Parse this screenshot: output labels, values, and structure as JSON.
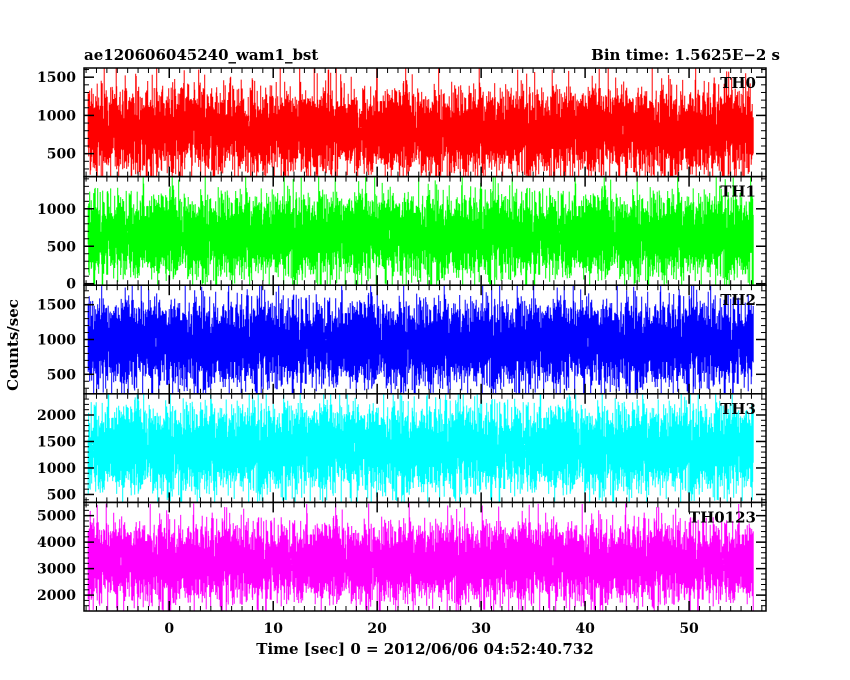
{
  "chart_data": {
    "type": "line",
    "title_left": "ae120606045240_wam1_bst",
    "title_right": "Bin time: 1.5625E−2 s",
    "xlabel": "Time [sec] 0 = 2012/06/06 04:52:40.732",
    "ylabel": "Counts/sec",
    "xlim": [
      -8.2,
      57.4
    ],
    "x_range": [
      -7.8,
      56.2
    ],
    "x_ticks": [
      0,
      10,
      20,
      30,
      40,
      50
    ],
    "x_tick_labels": [
      "0",
      "10",
      "20",
      "30",
      "40",
      "50"
    ],
    "grid": false,
    "panels": [
      {
        "label": "TH0",
        "color": "#ff0000",
        "ylim": [
          200,
          1620
        ],
        "y_ticks": [
          500,
          1000,
          1500
        ],
        "y_tick_labels": [
          "500",
          "1000",
          "1500"
        ],
        "mean": 800,
        "spread": 560,
        "max": 1620,
        "min": 150
      },
      {
        "label": "TH1",
        "color": "#00ff00",
        "ylim": [
          -20,
          1430
        ],
        "y_ticks": [
          0,
          500,
          1000
        ],
        "y_tick_labels": [
          "0",
          "500",
          "1000"
        ],
        "mean": 650,
        "spread": 560,
        "max": 1430,
        "min": -20
      },
      {
        "label": "TH2",
        "color": "#0000ff",
        "ylim": [
          220,
          1780
        ],
        "y_ticks": [
          500,
          1000,
          1500
        ],
        "y_tick_labels": [
          "500",
          "1000",
          "1500"
        ],
        "mean": 950,
        "spread": 620,
        "max": 1780,
        "min": 150
      },
      {
        "label": "TH3",
        "color": "#00ffff",
        "ylim": [
          350,
          2400
        ],
        "y_ticks": [
          500,
          1000,
          1500,
          2000
        ],
        "y_tick_labels": [
          "500",
          "1000",
          "1500",
          "2000"
        ],
        "mean": 1380,
        "spread": 820,
        "max": 2400,
        "min": 300
      },
      {
        "label": "TH0123",
        "color": "#ff00ff",
        "ylim": [
          1400,
          5500
        ],
        "y_ticks": [
          2000,
          3000,
          4000,
          5000
        ],
        "y_tick_labels": [
          "2000",
          "3000",
          "4000",
          "5000"
        ],
        "mean": 3250,
        "spread": 1500,
        "max": 5500,
        "min": 1300
      }
    ]
  }
}
